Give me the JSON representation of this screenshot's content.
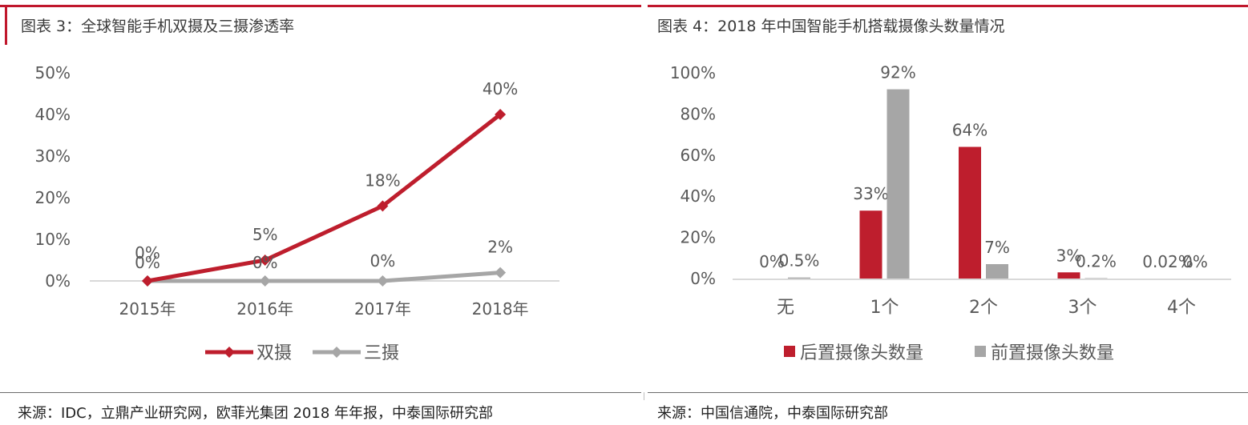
{
  "left_panel": {
    "title": "图表 3：全球智能手机双摄及三摄渗透率",
    "source": "来源：IDC，立鼎产业研究网，欧菲光集团 2018 年年报，中泰国际研究部"
  },
  "right_panel": {
    "title": "图表 4：2018 年中国智能手机搭载摄像头数量情况",
    "source": "来源：中国信通院，中泰国际研究部"
  },
  "chart_data": [
    {
      "type": "line",
      "title": "",
      "categories": [
        "2015年",
        "2016年",
        "2017年",
        "2018年"
      ],
      "y_ticks": [
        "0%",
        "10%",
        "20%",
        "30%",
        "40%",
        "50%"
      ],
      "ylim": [
        0,
        50
      ],
      "grid": false,
      "legend_position": "bottom",
      "series": [
        {
          "name": "双摄",
          "values": [
            0,
            5,
            18,
            40
          ],
          "labels": [
            "0%",
            "5%",
            "18%",
            "40%"
          ],
          "color": "#be1e2d",
          "marker": "diamond"
        },
        {
          "name": "三摄",
          "values": [
            0,
            0,
            0,
            2
          ],
          "labels": [
            "0%",
            "0%",
            "0%",
            "2%"
          ],
          "color": "#a6a6a6",
          "marker": "diamond"
        }
      ]
    },
    {
      "type": "bar",
      "title": "",
      "categories": [
        "无",
        "1个",
        "2个",
        "3个",
        "4个"
      ],
      "y_ticks": [
        "0%",
        "20%",
        "40%",
        "60%",
        "80%",
        "100%"
      ],
      "ylim": [
        0,
        100
      ],
      "grid": false,
      "legend_position": "bottom",
      "series": [
        {
          "name": "后置摄像头数量",
          "values": [
            0,
            33,
            64,
            3,
            0.02
          ],
          "labels": [
            "0%",
            "33%",
            "64%",
            "3%",
            "0.02%"
          ],
          "color": "#be1e2d"
        },
        {
          "name": "前置摄像头数量",
          "values": [
            0.5,
            92,
            7,
            0.2,
            0
          ],
          "labels": [
            "0.5%",
            "92%",
            "7%",
            "0.2%",
            "0%"
          ],
          "color": "#a6a6a6"
        }
      ]
    }
  ]
}
